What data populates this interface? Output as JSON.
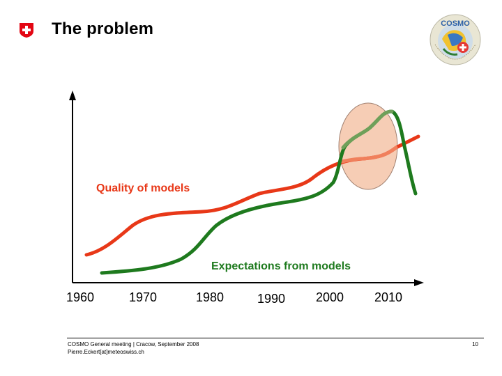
{
  "header": {
    "title": "The problem",
    "logo_icon": "swiss-cross-icon",
    "cosmo_logo_text": "COSMO"
  },
  "diagram": {
    "quality_label": "Quality of models",
    "expectations_label": "Expectations from models",
    "x_ticks": [
      "1960",
      "1970",
      "1980",
      "1990",
      "2000",
      "2010"
    ],
    "colors": {
      "quality": "#e83818",
      "expectations": "#1e7a1e",
      "highlight_fill": "#f6cdb5",
      "highlight_stroke": "#a08070",
      "accent": "#e30613"
    }
  },
  "footer": {
    "line1": "COSMO General meeting | Cracow, September 2008",
    "line2": "Pierre.Eckert[at]meteoswiss.ch",
    "page": "10"
  }
}
